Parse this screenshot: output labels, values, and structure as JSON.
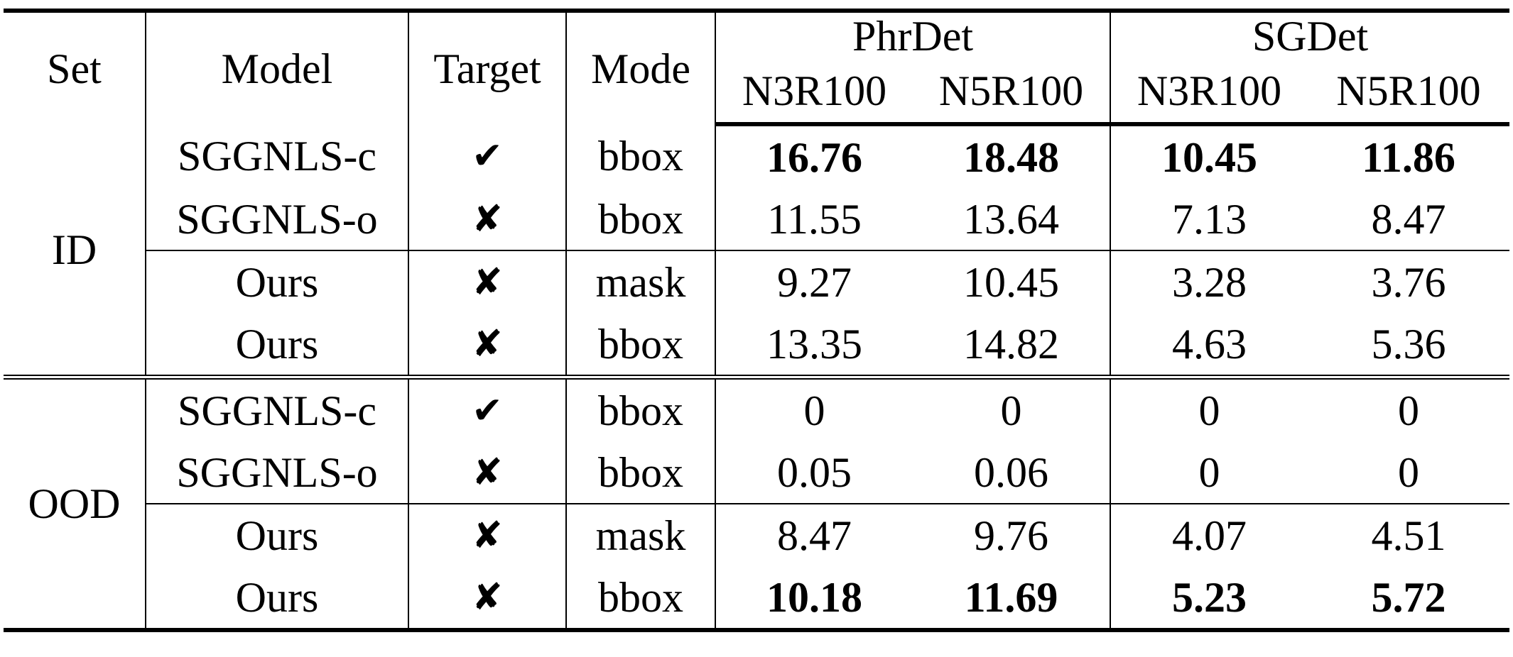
{
  "table": {
    "headers": {
      "set": "Set",
      "model": "Model",
      "target": "Target",
      "mode": "Mode",
      "group_phrdet": "PhrDet",
      "group_sgdet": "SGDet",
      "phrdet_n3r100": "N3R100",
      "phrdet_n5r100": "N5R100",
      "sgdet_n3r100": "N3R100",
      "sgdet_n5r100": "N5R100"
    },
    "sets": [
      {
        "name": "ID",
        "rows": [
          {
            "model": "SGGNLS-c",
            "target": "✔",
            "mode": "bbox",
            "phr_n3": "16.76",
            "phr_n5": "18.48",
            "sg_n3": "10.45",
            "sg_n5": "11.86"
          },
          {
            "model": "SGGNLS-o",
            "target": "✘",
            "mode": "bbox",
            "phr_n3": "11.55",
            "phr_n5": "13.64",
            "sg_n3": "7.13",
            "sg_n5": "8.47"
          },
          {
            "model": "Ours",
            "target": "✘",
            "mode": "mask",
            "phr_n3": "9.27",
            "phr_n5": "10.45",
            "sg_n3": "3.28",
            "sg_n5": "3.76"
          },
          {
            "model": "Ours",
            "target": "✘",
            "mode": "bbox",
            "phr_n3": "13.35",
            "phr_n5": "14.82",
            "sg_n3": "4.63",
            "sg_n5": "5.36"
          }
        ]
      },
      {
        "name": "OOD",
        "rows": [
          {
            "model": "SGGNLS-c",
            "target": "✔",
            "mode": "bbox",
            "phr_n3": "0",
            "phr_n5": "0",
            "sg_n3": "0",
            "sg_n5": "0"
          },
          {
            "model": "SGGNLS-o",
            "target": "✘",
            "mode": "bbox",
            "phr_n3": "0.05",
            "phr_n5": "0.06",
            "sg_n3": "0",
            "sg_n5": "0"
          },
          {
            "model": "Ours",
            "target": "✘",
            "mode": "mask",
            "phr_n3": "8.47",
            "phr_n5": "9.76",
            "sg_n3": "4.07",
            "sg_n5": "4.51"
          },
          {
            "model": "Ours",
            "target": "✘",
            "mode": "bbox",
            "phr_n3": "10.18",
            "phr_n5": "11.69",
            "sg_n3": "5.23",
            "sg_n5": "5.72"
          }
        ]
      }
    ]
  }
}
